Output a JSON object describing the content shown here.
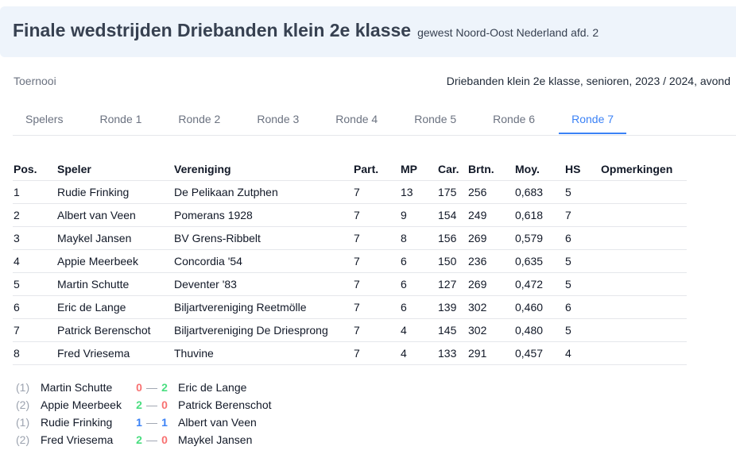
{
  "header": {
    "title": "Finale wedstrijden Driebanden klein 2e klasse",
    "subtitle": "gewest Noord-Oost Nederland afd. 2"
  },
  "tournament": {
    "label": "Toernooi",
    "value": "Driebanden klein 2e klasse, senioren, 2023 / 2024, avond"
  },
  "tabs": [
    "Spelers",
    "Ronde 1",
    "Ronde 2",
    "Ronde 3",
    "Ronde 4",
    "Ronde 5",
    "Ronde 6",
    "Ronde 7"
  ],
  "active_tab": "Ronde 7",
  "standings": {
    "columns": [
      "Pos.",
      "Speler",
      "Vereniging",
      "Part.",
      "MP",
      "Car.",
      "Brtn.",
      "Moy.",
      "HS",
      "Opmerkingen"
    ],
    "rows": [
      [
        "1",
        "Rudie Frinking",
        "De Pelikaan Zutphen",
        "7",
        "13",
        "175",
        "256",
        "0,683",
        "5",
        ""
      ],
      [
        "2",
        "Albert van Veen",
        "Pomerans 1928",
        "7",
        "9",
        "154",
        "249",
        "0,618",
        "7",
        ""
      ],
      [
        "3",
        "Maykel Jansen",
        "BV Grens-Ribbelt",
        "7",
        "8",
        "156",
        "269",
        "0,579",
        "6",
        ""
      ],
      [
        "4",
        "Appie Meerbeek",
        "Concordia '54",
        "7",
        "6",
        "150",
        "236",
        "0,635",
        "5",
        ""
      ],
      [
        "5",
        "Martin Schutte",
        "Deventer '83",
        "7",
        "6",
        "127",
        "269",
        "0,472",
        "5",
        ""
      ],
      [
        "6",
        "Eric de Lange",
        "Biljartvereniging Reetmölle",
        "7",
        "6",
        "139",
        "302",
        "0,460",
        "6",
        ""
      ],
      [
        "7",
        "Patrick Berenschot",
        "Biljartvereniging De Driesprong",
        "7",
        "4",
        "145",
        "302",
        "0,480",
        "5",
        ""
      ],
      [
        "8",
        "Fred Vriesema",
        "Thuvine",
        "7",
        "4",
        "133",
        "291",
        "0,457",
        "4",
        ""
      ]
    ]
  },
  "matches": [
    {
      "round": "(1)",
      "player1": "Martin Schutte",
      "score1": "0",
      "dash": "—",
      "score2": "2",
      "player2": "Eric de Lange",
      "s1": "loss",
      "s2": "win"
    },
    {
      "round": "(2)",
      "player1": "Appie Meerbeek",
      "score1": "2",
      "dash": "—",
      "score2": "0",
      "player2": "Patrick Berenschot",
      "s1": "win",
      "s2": "loss"
    },
    {
      "round": "(1)",
      "player1": "Rudie Frinking",
      "score1": "1",
      "dash": "—",
      "score2": "1",
      "player2": "Albert van Veen",
      "s1": "draw",
      "s2": "draw"
    },
    {
      "round": "(2)",
      "player1": "Fred Vriesema",
      "score1": "2",
      "dash": "—",
      "score2": "0",
      "player2": "Maykel Jansen",
      "s1": "win",
      "s2": "loss"
    }
  ],
  "colors": {
    "win": "#4ade80",
    "loss": "#f87171",
    "draw": "#3b82f6",
    "accent": "#3b82f6",
    "header_bg": "#eef4fb"
  }
}
